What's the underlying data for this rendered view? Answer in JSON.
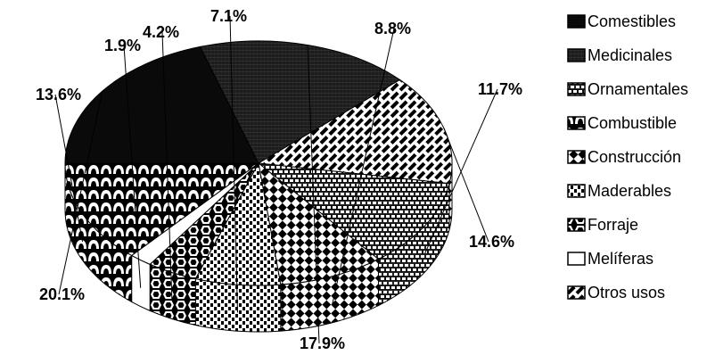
{
  "chart_data": {
    "type": "pie",
    "title": "",
    "legend_position": "right",
    "categories": [
      "Comestibles",
      "Medicinales",
      "Ornamentales",
      "Combustible",
      "Construcción",
      "Maderables",
      "Forraje",
      "Melíferas",
      "Otros usos"
    ],
    "slices": [
      {
        "category": "Comestibles",
        "value": 20.1,
        "label": "20.1%",
        "pattern": "solid"
      },
      {
        "category": "Medicinales",
        "value": 17.9,
        "label": "17.9%",
        "pattern": "dense-grid"
      },
      {
        "category": "Otros usos",
        "value": 14.6,
        "label": "14.6%",
        "pattern": "diagonal-dash"
      },
      {
        "category": "Ornamentales",
        "value": 11.7,
        "label": "11.7%",
        "pattern": "brick"
      },
      {
        "category": "Construcción",
        "value": 8.8,
        "label": "8.8%",
        "pattern": "checker"
      },
      {
        "category": "Maderables",
        "value": 7.1,
        "label": "7.1%",
        "pattern": "vertical-ticks"
      },
      {
        "category": "Forraje",
        "value": 4.2,
        "label": "4.2%",
        "pattern": "hex"
      },
      {
        "category": "Melíferas",
        "value": 1.9,
        "label": "1.9%",
        "pattern": "white"
      },
      {
        "category": "Combustible",
        "value": 13.6,
        "label": "13.6%",
        "pattern": "arches"
      }
    ]
  }
}
